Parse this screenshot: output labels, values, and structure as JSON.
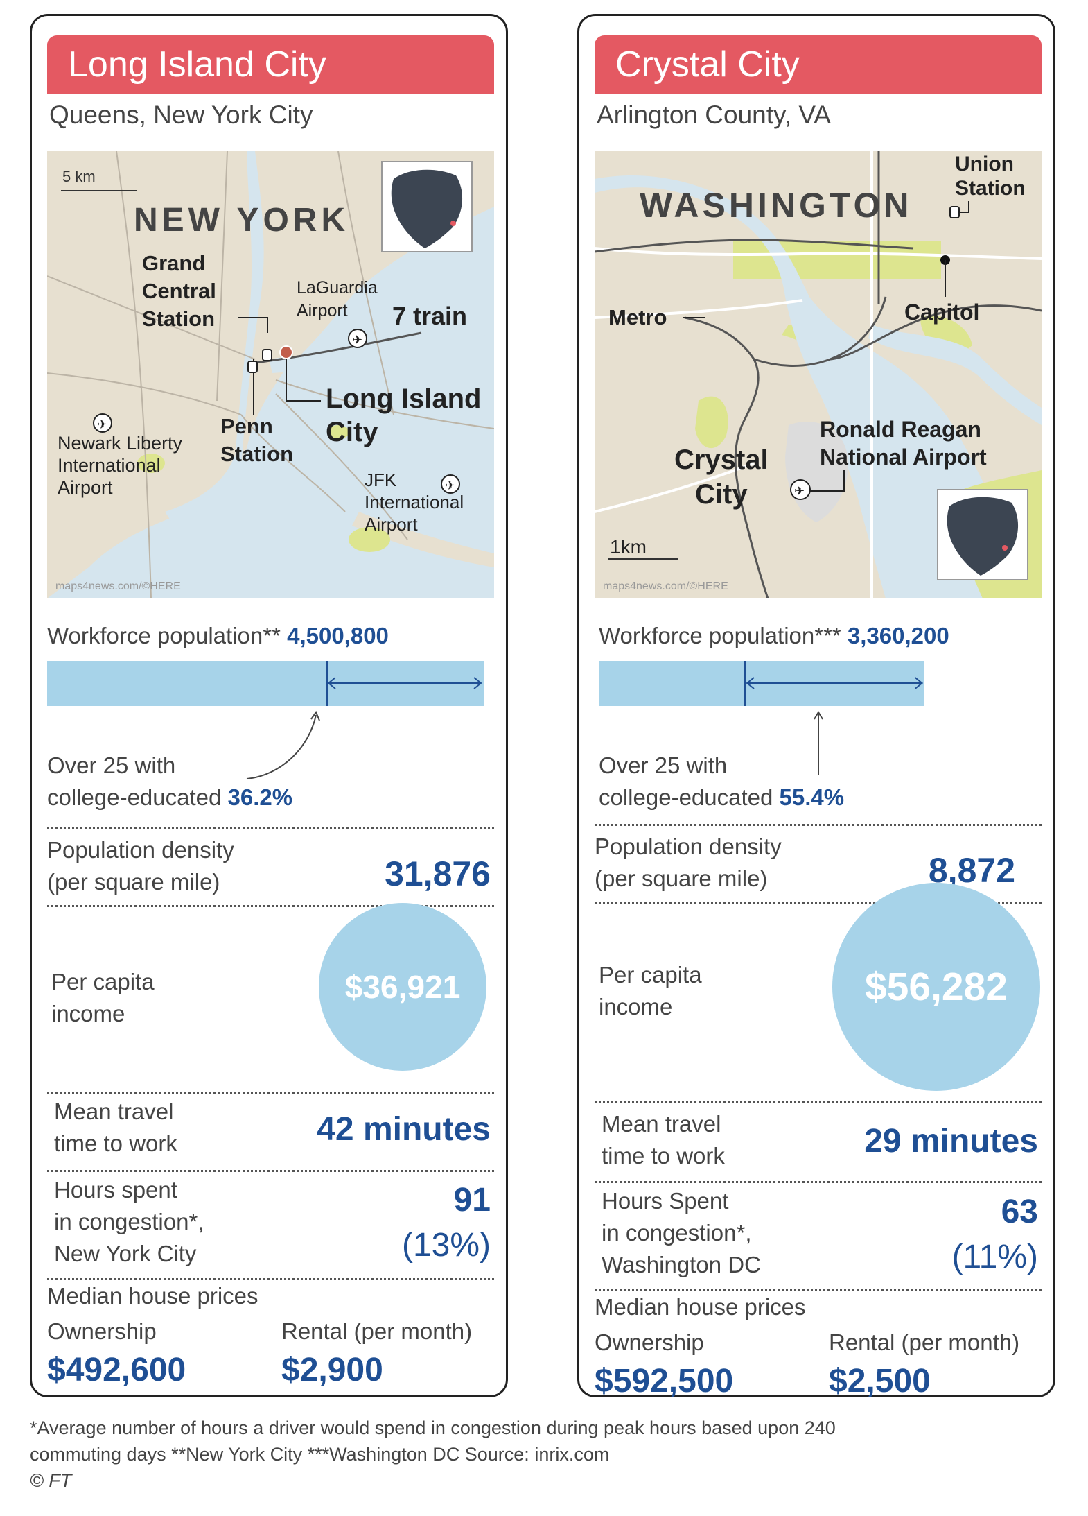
{
  "colors": {
    "title_bar": "#e45962",
    "accent_blue": "#1f4f94",
    "light_blue": "#a7d3e9",
    "map_land": "#e7e0d0",
    "map_water": "#d5e5ee",
    "map_green": "#dde58f"
  },
  "chart_data": [
    {
      "type": "table",
      "title": "Long Island City",
      "subtitle": "Queens, New York City",
      "map": {
        "scale": "5 km",
        "city_label": "NEW YORK",
        "places": [
          "Grand Central Station",
          "LaGuardia Airport",
          "7 train",
          "Long Island City",
          "Penn Station",
          "Newark Liberty International Airport",
          "JFK International Airport"
        ],
        "place_lines": {
          "grand_central": [
            "Grand",
            "Central",
            "Station"
          ],
          "laguardia": [
            "LaGuardia",
            "Airport"
          ],
          "train": "7 train",
          "lic": [
            "Long Island",
            "City"
          ],
          "penn": [
            "Penn",
            "Station"
          ],
          "newark": [
            "Newark Liberty",
            "International",
            "Airport"
          ],
          "jfk": [
            "JFK",
            "International",
            "Airport"
          ]
        },
        "credit": "maps4news.com/©HERE"
      },
      "workforce_label": "Workforce population**",
      "workforce_value": 4500800,
      "workforce_display": "4,500,800",
      "college_line1": "Over 25 with",
      "college_line2": "college-educated",
      "college_pct": 36.2,
      "college_display": "36.2%",
      "density_line1": "Population density",
      "density_line2": "(per square mile)",
      "density_value": 31876,
      "density_display": "31,876",
      "income_line1": "Per capita",
      "income_line2": "income",
      "income_value": 36921,
      "income_display": "$36,921",
      "travel_line1": "Mean travel",
      "travel_line2": "time to work",
      "travel_value": 42,
      "travel_display": "42 minutes",
      "congestion_line1": "Hours spent",
      "congestion_line2": "in congestion*,",
      "congestion_line3": "New York City",
      "congestion_hours": 91,
      "congestion_hours_display": "91",
      "congestion_pct_display": "(13%)",
      "house_head": "Median house prices",
      "ownership_label": "Ownership",
      "ownership_value": 492600,
      "ownership_display": "$492,600",
      "rental_label": "Rental (per month)",
      "rental_value": 2900,
      "rental_display": "$2,900"
    },
    {
      "type": "table",
      "title": "Crystal City",
      "subtitle": "Arlington County, VA",
      "map": {
        "scale": "1km",
        "city_label": "WASHINGTON",
        "places": [
          "Union Station",
          "Metro",
          "Capitol",
          "Ronald Reagan National Airport",
          "Crystal City"
        ],
        "place_lines": {
          "union": [
            "Union",
            "Station"
          ],
          "metro": "Metro",
          "capitol": "Capitol",
          "reagan": [
            "Ronald Reagan",
            "National Airport"
          ],
          "crystal": [
            "Crystal",
            "City"
          ]
        },
        "credit": "maps4news.com/©HERE"
      },
      "workforce_label": "Workforce population***",
      "workforce_value": 3360200,
      "workforce_display": "3,360,200",
      "college_line1": "Over 25 with",
      "college_line2": "college-educated",
      "college_pct": 55.4,
      "college_display": "55.4%",
      "density_line1": "Population density",
      "density_line2": "(per square mile)",
      "density_value": 8872,
      "density_display": "8,872",
      "income_line1": "Per capita",
      "income_line2": "income",
      "income_value": 56282,
      "income_display": "$56,282",
      "travel_line1": "Mean travel",
      "travel_line2": "time to work",
      "travel_value": 29,
      "travel_display": "29 minutes",
      "congestion_line1": "Hours Spent",
      "congestion_line2": "in congestion*,",
      "congestion_line3": "Washington DC",
      "congestion_hours": 63,
      "congestion_hours_display": "63",
      "congestion_pct_display": "(11%)",
      "house_head": "Median house prices",
      "ownership_label": "Ownership",
      "ownership_value": 592500,
      "ownership_display": "$592,500",
      "rental_label": "Rental (per month)",
      "rental_value": 2500,
      "rental_display": "$2,500"
    }
  ],
  "footnote": {
    "line1": "*Average number of hours a driver would spend in congestion during peak hours based upon 240",
    "line2": "commuting days **New York City  ***Washington DC  Source: inrix.com",
    "line3": "© FT"
  }
}
